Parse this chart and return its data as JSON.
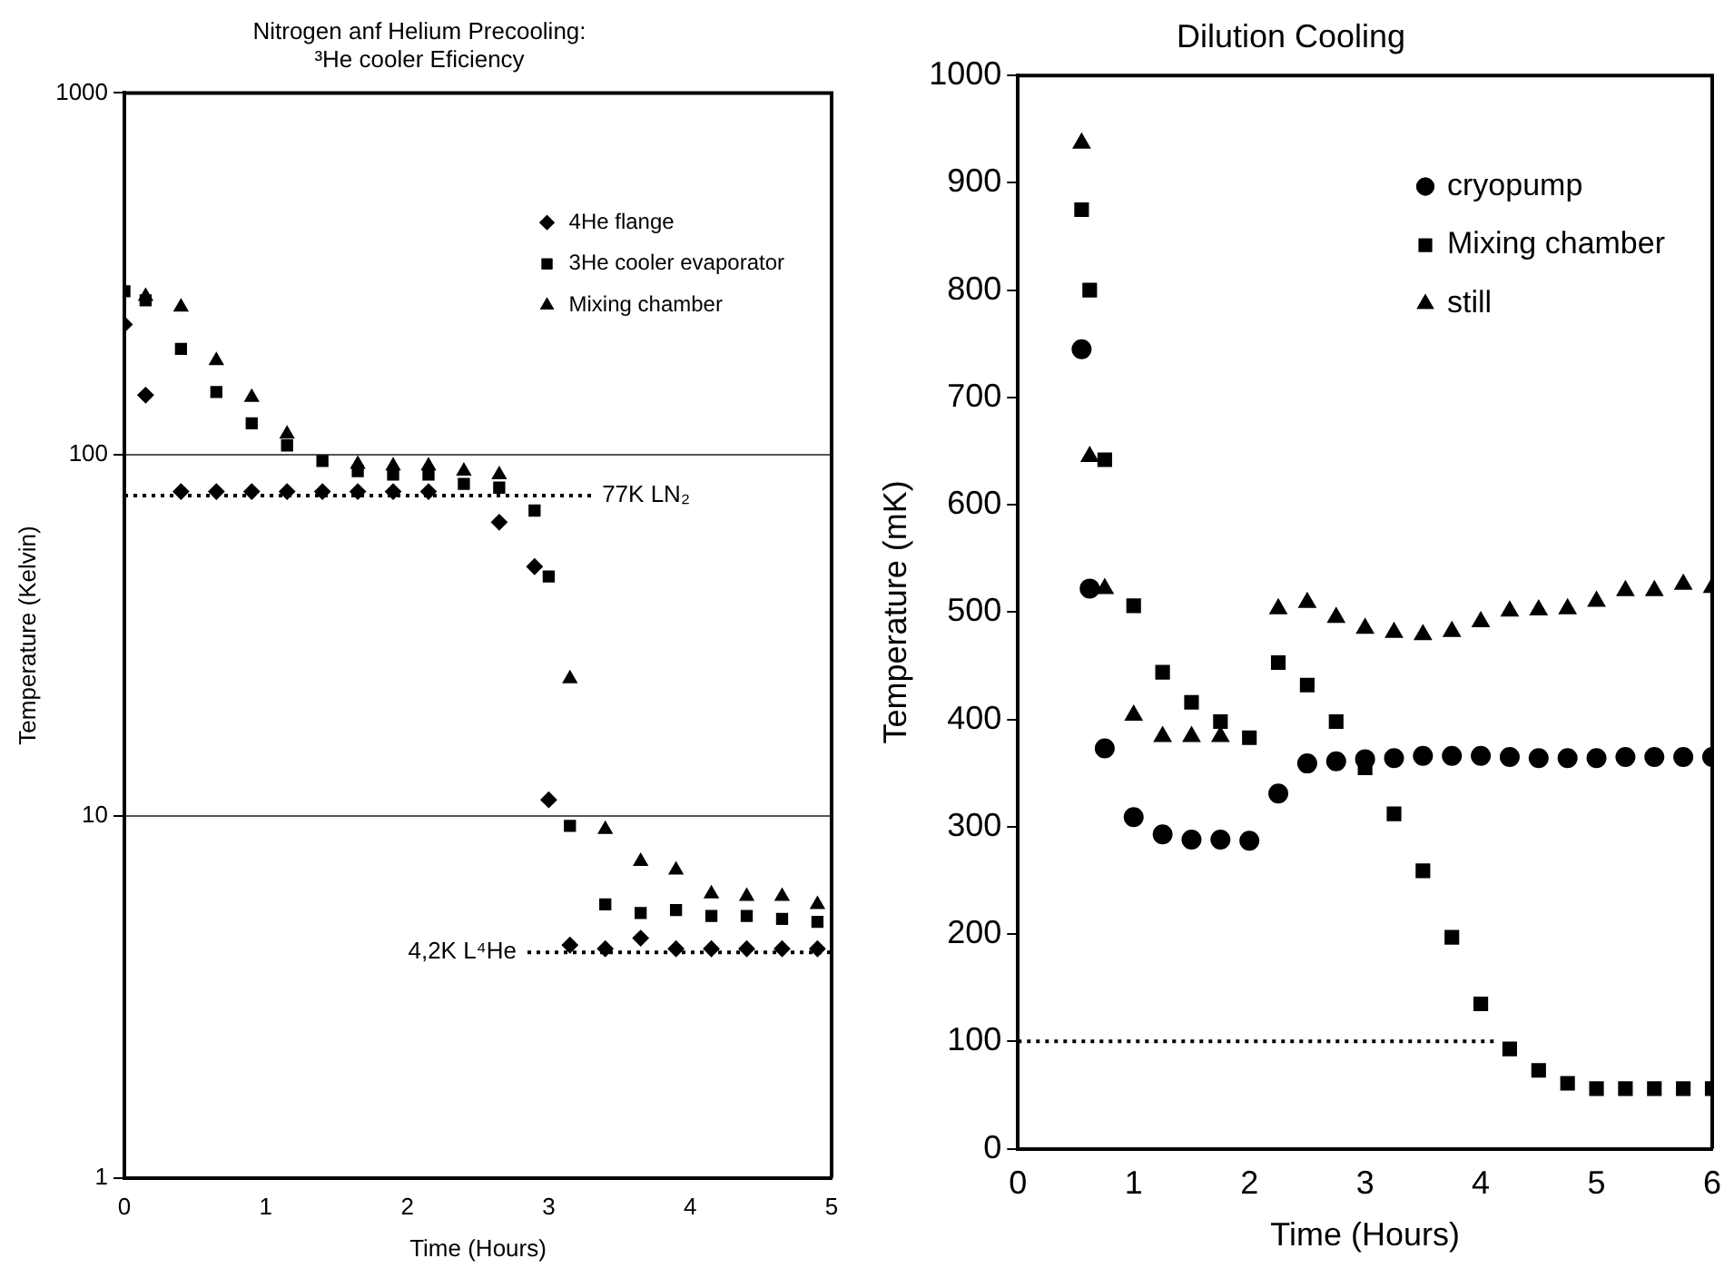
{
  "chart_data": [
    {
      "type": "scatter",
      "title": "Nitrogen anf Helium Precooling:\n³He cooler Eficiency",
      "xlabel": "Time (Hours)",
      "ylabel": "Temperature (Kelvin)",
      "log": "y",
      "xlim": [
        0,
        5
      ],
      "xticks": [
        0,
        1,
        2,
        3,
        4,
        5
      ],
      "ylim": [
        1,
        1000
      ],
      "yticks": [
        1,
        10,
        100,
        1000
      ],
      "grid": "y",
      "legend": "top right",
      "x": [
        0,
        0.15,
        0.4,
        0.65,
        0.9,
        1.15,
        1.4,
        1.65,
        1.9,
        2.15,
        2.4,
        2.65,
        2.9,
        3.0,
        3.15,
        3.4,
        3.65,
        3.9,
        4.15,
        4.4,
        4.65,
        4.9
      ],
      "series": [
        {
          "name": "4He flange",
          "color": "#000000",
          "marker": "diamond",
          "values": [
            229,
            146,
            79,
            79,
            79,
            79,
            79,
            79,
            79,
            79,
            null,
            65,
            49,
            11.1,
            4.4,
            4.3,
            4.6,
            4.3,
            4.3,
            4.3,
            4.3,
            4.3
          ]
        },
        {
          "name": "3He cooler evaporator",
          "color": "#000000",
          "marker": "square",
          "values": [
            283,
            267,
            196,
            149,
            122,
            106,
            96,
            90,
            88,
            88,
            83,
            81,
            70,
            46,
            9.4,
            5.7,
            5.4,
            5.5,
            5.3,
            5.3,
            5.2,
            5.1
          ]
        },
        {
          "name": "Mixing chamber",
          "color": "#000000",
          "marker": "triangle",
          "x": [
            0.15,
            0.4,
            0.65,
            0.9,
            1.15,
            1.65,
            1.9,
            2.15,
            2.4,
            2.65,
            3.15,
            3.4,
            3.65,
            3.9,
            4.15,
            4.4,
            4.65,
            4.9
          ],
          "values": [
            274,
            256,
            182,
            144,
            114,
            94,
            93,
            93,
            90,
            88,
            24,
            9.2,
            7.5,
            7.1,
            6.1,
            6.0,
            6.0,
            5.7
          ]
        },
        {
          "type": "line",
          "color": "#000000",
          "marker": "none",
          "line_style": "dotted",
          "x": [
            0,
            3.3
          ],
          "values": [
            77,
            77
          ]
        },
        {
          "type": "line",
          "color": "#000000",
          "marker": "none",
          "line_style": "dotted",
          "x": [
            2.85,
            5
          ],
          "values": [
            4.2,
            4.2
          ]
        }
      ],
      "annotations": [
        {
          "text": "77K LN₂",
          "x": 3.3,
          "y": 77
        },
        {
          "text": "4,2K L⁴He",
          "x": 2.85,
          "y": 4.2
        }
      ]
    },
    {
      "type": "scatter",
      "title": "Dilution Cooling",
      "xlabel": "Time (Hours)",
      "ylabel": "Temperature (mK)",
      "xlim": [
        0,
        6
      ],
      "xticks": [
        0,
        1,
        2,
        3,
        4,
        5,
        6
      ],
      "ylim": [
        0,
        1000
      ],
      "yticks": [
        0,
        100,
        200,
        300,
        400,
        500,
        600,
        700,
        800,
        900,
        1000
      ],
      "grid": false,
      "legend": "top right",
      "x": [
        0.55,
        0.62,
        0.75,
        1.0,
        1.25,
        1.5,
        1.75,
        2.0,
        2.25,
        2.5,
        2.75,
        3.0,
        3.25,
        3.5,
        3.75,
        4.0,
        4.25,
        4.5,
        4.75,
        5.0,
        5.25,
        5.5,
        5.75,
        6.0
      ],
      "series": [
        {
          "name": "cryopump",
          "color": "#000000",
          "marker": "circle",
          "values": [
            745,
            522,
            373,
            309,
            293,
            288,
            288,
            287,
            331,
            359,
            361,
            363,
            364,
            366,
            366,
            366,
            365,
            364,
            364,
            364,
            365,
            365,
            365,
            365
          ]
        },
        {
          "name": "Mixing chamber",
          "color": "#000000",
          "marker": "square",
          "values": [
            875,
            800,
            642,
            506,
            444,
            416,
            398,
            383,
            453,
            432,
            398,
            355,
            312,
            259,
            197,
            135,
            93,
            73,
            61,
            56,
            56,
            56,
            56,
            56
          ]
        },
        {
          "name": "still",
          "color": "#000000",
          "marker": "triangle",
          "values": [
            937,
            645,
            522,
            404,
            384,
            384,
            384,
            null,
            503,
            509,
            495,
            485,
            481,
            479,
            482,
            491,
            501,
            502,
            503,
            510,
            520,
            520,
            526,
            523
          ]
        },
        {
          "type": "line",
          "color": "#000000",
          "marker": "none",
          "line_style": "dotted",
          "x": [
            0,
            4.14
          ],
          "values": [
            100,
            100
          ]
        }
      ]
    }
  ]
}
